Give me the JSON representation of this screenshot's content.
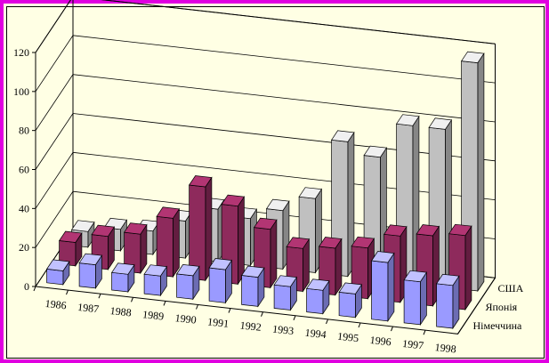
{
  "chart_data": {
    "type": "bar",
    "subtype": "3d-clustered",
    "title": "",
    "xlabel": "",
    "ylabel": "",
    "ylim": [
      0,
      120
    ],
    "yticks": [
      "0",
      "20",
      "40",
      "60",
      "80",
      "100",
      "120"
    ],
    "categories": [
      "1986",
      "1987",
      "1988",
      "1989",
      "1990",
      "1991",
      "1992",
      "1993",
      "1994",
      "1995",
      "1996",
      "1997",
      "1998"
    ],
    "series": [
      {
        "name": "Німеччина",
        "color": "#9a9aff",
        "values": [
          7,
          12,
          9,
          10,
          12,
          17,
          15,
          12,
          12,
          12,
          30,
          22,
          22
        ]
      },
      {
        "name": "Японія",
        "color": "#8e2a5c",
        "values": [
          12,
          17,
          20,
          30,
          48,
          40,
          30,
          22,
          24,
          26,
          34,
          36,
          38
        ]
      },
      {
        "name": "США",
        "color": "#c0c0c0",
        "values": [
          8,
          11,
          12,
          19,
          27,
          24,
          30,
          38,
          69,
          63,
          81,
          81,
          117
        ]
      }
    ],
    "grid": true,
    "legend": "depth-axis-labels"
  }
}
